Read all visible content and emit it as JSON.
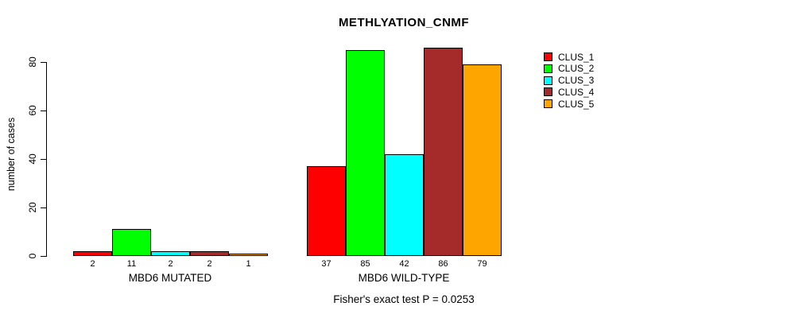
{
  "chart_data": {
    "type": "bar",
    "title": "METHLYATION_CNMF",
    "ylabel": "number of cases",
    "xlabel": "",
    "yticks": [
      0,
      20,
      40,
      60,
      80
    ],
    "ylim": [
      0,
      80
    ],
    "grid": false,
    "legend_position": "right-outside",
    "clusters": [
      {
        "name": "CLUS_1",
        "color": "#ff0000"
      },
      {
        "name": "CLUS_2",
        "color": "#00ff00"
      },
      {
        "name": "CLUS_3",
        "color": "#00ffff"
      },
      {
        "name": "CLUS_4",
        "color": "#a52a2a"
      },
      {
        "name": "CLUS_5",
        "color": "#ffa500"
      }
    ],
    "groups": [
      {
        "label": "MBD6 MUTATED",
        "values": [
          2,
          11,
          2,
          2,
          1
        ]
      },
      {
        "label": "MBD6 WILD-TYPE",
        "values": [
          37,
          85,
          42,
          86,
          79
        ]
      }
    ],
    "annotation": "Fisher's exact test P = 0.0253"
  }
}
